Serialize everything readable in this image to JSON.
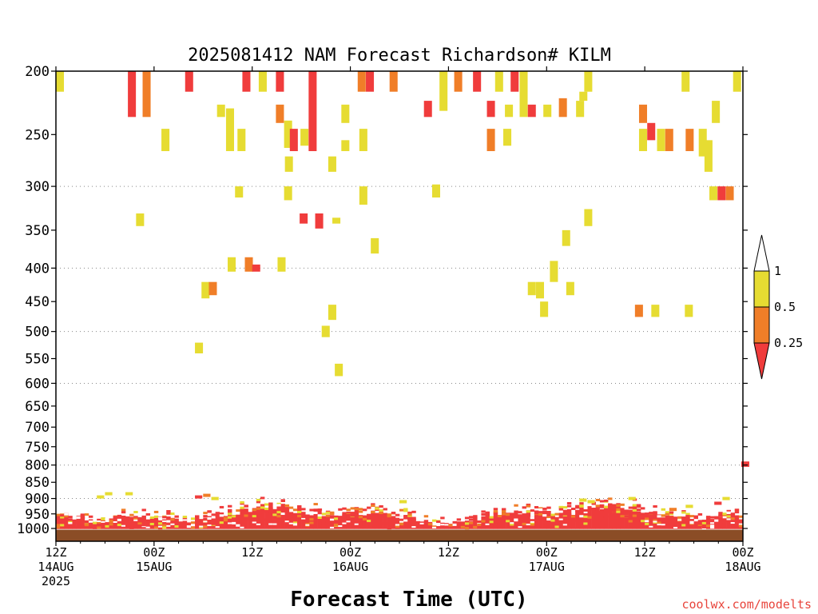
{
  "title": "2025081412 NAM Forecast Richardson# KILM",
  "xlabel": "Forecast Time (UTC)",
  "credit": "coolwx.com/modelts",
  "colors": {
    "ri_lt_025": "#f03c3c",
    "ri_025_05": "#f07e28",
    "ri_05_1": "#e6dc32",
    "ground": "#8b4d26",
    "credit": "#e8453c"
  },
  "chart_data": {
    "type": "heatmap",
    "title": "2025081412 NAM Forecast Richardson# KILM",
    "xlabel": "Forecast Time (UTC)",
    "ylabel": "",
    "x_range_hours": [
      0,
      84
    ],
    "y_range_hPa": [
      1000,
      200
    ],
    "y_scale": "log-pressure (inverted)",
    "grid": "dotted horizontal at 300, 400, 500, 600, 800, 900, 1000",
    "y_ticks": [
      "200",
      "250",
      "300",
      "350",
      "400",
      "450",
      "500",
      "550",
      "600",
      "650",
      "700",
      "750",
      "800",
      "850",
      "900",
      "950",
      "1000"
    ],
    "x_ticks": [
      {
        "hour": 0,
        "line1": "12Z",
        "line2": "14AUG",
        "line3": "2025"
      },
      {
        "hour": 12,
        "line1": "00Z",
        "line2": "15AUG",
        "line3": ""
      },
      {
        "hour": 24,
        "line1": "12Z",
        "line2": "",
        "line3": ""
      },
      {
        "hour": 36,
        "line1": "00Z",
        "line2": "16AUG",
        "line3": ""
      },
      {
        "hour": 48,
        "line1": "12Z",
        "line2": "",
        "line3": ""
      },
      {
        "hour": 60,
        "line1": "00Z",
        "line2": "17AUG",
        "line3": ""
      },
      {
        "hour": 72,
        "line1": "12Z",
        "line2": "",
        "line3": ""
      },
      {
        "hour": 84,
        "line1": "00Z",
        "line2": "18AUG",
        "line3": ""
      }
    ],
    "legend": {
      "placement": "right",
      "levels": [
        "1",
        "0.5",
        "0.25"
      ],
      "bins": [
        "> 1",
        "0.5 - 1",
        "0.25 - 0.5",
        "< 0.25"
      ]
    },
    "upper_cells": [
      {
        "h": 0.0,
        "p": [
          200,
          215
        ],
        "c": "y"
      },
      {
        "h": 8.8,
        "p": [
          200,
          235
        ],
        "c": "r"
      },
      {
        "h": 10.6,
        "p": [
          200,
          235
        ],
        "c": "o"
      },
      {
        "h": 15.8,
        "p": [
          200,
          215
        ],
        "c": "r"
      },
      {
        "h": 12.9,
        "p": [
          245,
          265
        ],
        "c": "y"
      },
      {
        "h": 19.7,
        "p": [
          225,
          235
        ],
        "c": "y"
      },
      {
        "h": 20.8,
        "p": [
          228,
          265
        ],
        "c": "y"
      },
      {
        "h": 22.2,
        "p": [
          245,
          265
        ],
        "c": "y"
      },
      {
        "h": 22.8,
        "p": [
          200,
          215
        ],
        "c": "r"
      },
      {
        "h": 24.8,
        "p": [
          200,
          215
        ],
        "c": "y"
      },
      {
        "h": 26.9,
        "p": [
          200,
          215
        ],
        "c": "r"
      },
      {
        "h": 26.9,
        "p": [
          225,
          240
        ],
        "c": "o"
      },
      {
        "h": 27.9,
        "p": [
          238,
          262
        ],
        "c": "y"
      },
      {
        "h": 28.6,
        "p": [
          245,
          265
        ],
        "c": "r"
      },
      {
        "h": 29.9,
        "p": [
          245,
          260
        ],
        "c": "y"
      },
      {
        "h": 30.9,
        "p": [
          200,
          265
        ],
        "c": "r"
      },
      {
        "h": 28.0,
        "p": [
          270,
          285
        ],
        "c": "y"
      },
      {
        "h": 33.3,
        "p": [
          270,
          285
        ],
        "c": "y"
      },
      {
        "h": 34.9,
        "p": [
          225,
          240
        ],
        "c": "y"
      },
      {
        "h": 34.9,
        "p": [
          255,
          265
        ],
        "c": "y"
      },
      {
        "h": 36.9,
        "p": [
          200,
          215
        ],
        "c": "o"
      },
      {
        "h": 37.9,
        "p": [
          200,
          215
        ],
        "c": "r"
      },
      {
        "h": 40.8,
        "p": [
          200,
          215
        ],
        "c": "o"
      },
      {
        "h": 37.1,
        "p": [
          245,
          265
        ],
        "c": "y"
      },
      {
        "h": 21.9,
        "p": [
          300,
          312
        ],
        "c": "y"
      },
      {
        "h": 27.9,
        "p": [
          300,
          315
        ],
        "c": "y"
      },
      {
        "h": 37.1,
        "p": [
          300,
          320
        ],
        "c": "y"
      },
      {
        "h": 46.0,
        "p": [
          298,
          312
        ],
        "c": "y"
      },
      {
        "h": 9.8,
        "p": [
          330,
          345
        ],
        "c": "y"
      },
      {
        "h": 29.8,
        "p": [
          330,
          342
        ],
        "c": "r"
      },
      {
        "h": 31.7,
        "p": [
          330,
          348
        ],
        "c": "r"
      },
      {
        "h": 33.8,
        "p": [
          335,
          342
        ],
        "c": "y"
      },
      {
        "h": 46.9,
        "p": [
          200,
          230
        ],
        "c": "y"
      },
      {
        "h": 48.7,
        "p": [
          200,
          215
        ],
        "c": "o"
      },
      {
        "h": 51.0,
        "p": [
          200,
          215
        ],
        "c": "r"
      },
      {
        "h": 53.7,
        "p": [
          200,
          215
        ],
        "c": "y"
      },
      {
        "h": 55.6,
        "p": [
          200,
          215
        ],
        "c": "r"
      },
      {
        "h": 56.7,
        "p": [
          200,
          235
        ],
        "c": "y"
      },
      {
        "h": 45.0,
        "p": [
          222,
          235
        ],
        "c": "r"
      },
      {
        "h": 52.7,
        "p": [
          222,
          235
        ],
        "c": "r"
      },
      {
        "h": 52.7,
        "p": [
          245,
          265
        ],
        "c": "o"
      },
      {
        "h": 54.7,
        "p": [
          245,
          260
        ],
        "c": "y"
      },
      {
        "h": 54.9,
        "p": [
          225,
          235
        ],
        "c": "y"
      },
      {
        "h": 57.7,
        "p": [
          225,
          235
        ],
        "c": "r"
      },
      {
        "h": 59.6,
        "p": [
          225,
          235
        ],
        "c": "y"
      },
      {
        "h": 61.5,
        "p": [
          220,
          235
        ],
        "c": "o"
      },
      {
        "h": 63.6,
        "p": [
          222,
          235
        ],
        "c": "y"
      },
      {
        "h": 64.6,
        "p": [
          200,
          215
        ],
        "c": "y"
      },
      {
        "h": 64.0,
        "p": [
          215,
          222
        ],
        "c": "y"
      },
      {
        "h": 64.6,
        "p": [
          325,
          345
        ],
        "c": "y"
      },
      {
        "h": 61.9,
        "p": [
          350,
          370
        ],
        "c": "y"
      },
      {
        "h": 38.5,
        "p": [
          360,
          380
        ],
        "c": "y"
      },
      {
        "h": 71.3,
        "p": [
          225,
          240
        ],
        "c": "o"
      },
      {
        "h": 71.3,
        "p": [
          245,
          265
        ],
        "c": "y"
      },
      {
        "h": 72.3,
        "p": [
          240,
          255
        ],
        "c": "r"
      },
      {
        "h": 73.5,
        "p": [
          245,
          265
        ],
        "c": "y"
      },
      {
        "h": 74.5,
        "p": [
          245,
          265
        ],
        "c": "o"
      },
      {
        "h": 77.0,
        "p": [
          245,
          265
        ],
        "c": "o"
      },
      {
        "h": 78.6,
        "p": [
          245,
          270
        ],
        "c": "y"
      },
      {
        "h": 79.3,
        "p": [
          255,
          285
        ],
        "c": "y"
      },
      {
        "h": 76.5,
        "p": [
          200,
          215
        ],
        "c": "y"
      },
      {
        "h": 80.2,
        "p": [
          222,
          240
        ],
        "c": "y"
      },
      {
        "h": 82.8,
        "p": [
          200,
          215
        ],
        "c": "y"
      },
      {
        "h": 79.9,
        "p": [
          300,
          315
        ],
        "c": "y"
      },
      {
        "h": 80.9,
        "p": [
          300,
          315
        ],
        "c": "r"
      },
      {
        "h": 81.9,
        "p": [
          300,
          315
        ],
        "c": "o"
      },
      {
        "h": 21.0,
        "p": [
          385,
          405
        ],
        "c": "y"
      },
      {
        "h": 23.1,
        "p": [
          385,
          405
        ],
        "c": "o"
      },
      {
        "h": 24.0,
        "p": [
          395,
          405
        ],
        "c": "r"
      },
      {
        "h": 27.1,
        "p": [
          385,
          405
        ],
        "c": "y"
      },
      {
        "h": 17.8,
        "p": [
          420,
          445
        ],
        "c": "y"
      },
      {
        "h": 18.7,
        "p": [
          420,
          440
        ],
        "c": "o"
      },
      {
        "h": 33.3,
        "p": [
          455,
          480
        ],
        "c": "y"
      },
      {
        "h": 32.5,
        "p": [
          490,
          510
        ],
        "c": "y"
      },
      {
        "h": 17.0,
        "p": [
          520,
          540
        ],
        "c": "y"
      },
      {
        "h": 34.1,
        "p": [
          560,
          585
        ],
        "c": "y"
      },
      {
        "h": 57.7,
        "p": [
          420,
          440
        ],
        "c": "y"
      },
      {
        "h": 60.4,
        "p": [
          390,
          420
        ],
        "c": "y"
      },
      {
        "h": 58.7,
        "p": [
          420,
          445
        ],
        "c": "y"
      },
      {
        "h": 59.2,
        "p": [
          450,
          475
        ],
        "c": "y"
      },
      {
        "h": 62.4,
        "p": [
          420,
          440
        ],
        "c": "y"
      },
      {
        "h": 70.8,
        "p": [
          455,
          475
        ],
        "c": "o"
      },
      {
        "h": 72.8,
        "p": [
          455,
          475
        ],
        "c": "y"
      },
      {
        "h": 76.9,
        "p": [
          455,
          475
        ],
        "c": "y"
      },
      {
        "h": 83.8,
        "p": [
          790,
          805
        ],
        "c": "r"
      }
    ],
    "ground_hPa": 1010
  }
}
